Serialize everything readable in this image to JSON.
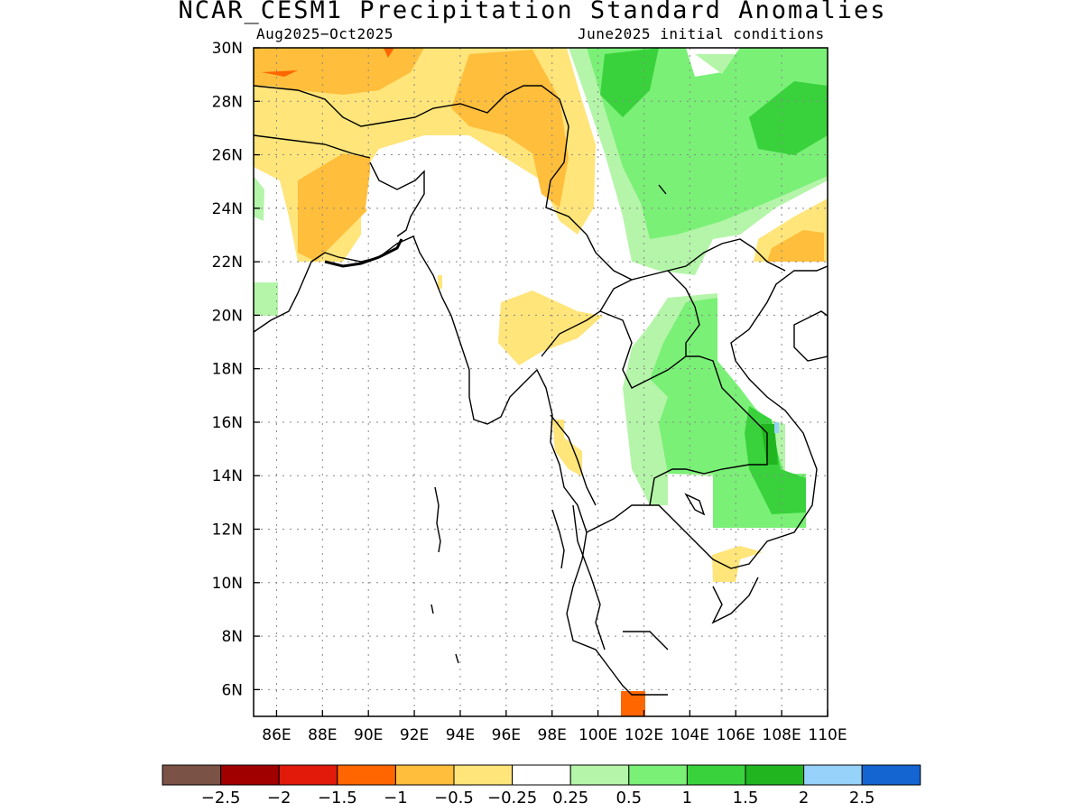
{
  "title": "NCAR_CESM1 Precipitation Standard Anomalies",
  "subtitle_left": "Aug2025−Oct2025",
  "subtitle_right": "June2025 initial conditions",
  "map": {
    "lon_labels": [
      "86E",
      "88E",
      "90E",
      "92E",
      "94E",
      "96E",
      "98E",
      "100E",
      "102E",
      "104E",
      "106E",
      "108E",
      "110E"
    ],
    "lat_labels": [
      "6N",
      "8N",
      "10N",
      "12N",
      "14N",
      "16N",
      "18N",
      "20N",
      "22N",
      "24N",
      "26N",
      "28N",
      "30N"
    ]
  },
  "colorbar": {
    "colors": [
      "#7a5246",
      "#a10000",
      "#e11a0a",
      "#ff6600",
      "#ffbe3b",
      "#ffe57a",
      "#ffffff",
      "#b5f5a9",
      "#7af077",
      "#39d23c",
      "#21b51f",
      "#96d2fa",
      "#1464d2"
    ],
    "labels": [
      "−2.5",
      "−2",
      "−1.5",
      "−1",
      "−0.5",
      "−0.25",
      "0.25",
      "0.5",
      "1",
      "1.5",
      "2",
      "2.5"
    ]
  }
}
